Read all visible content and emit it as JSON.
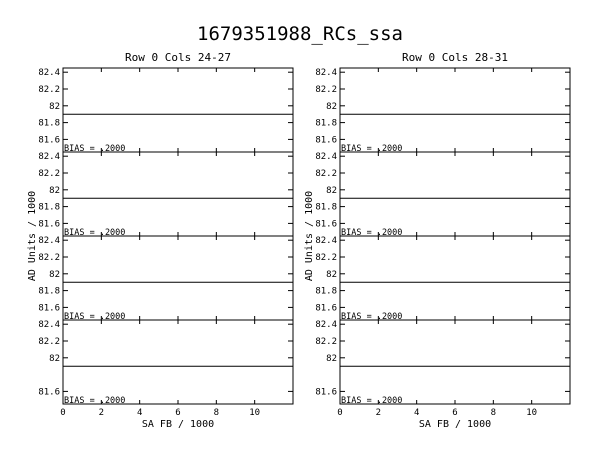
{
  "title": "1679351988_RCs_ssa",
  "chart_data": [
    {
      "type": "line",
      "title": "Row  0  Cols 24-27",
      "xlabel": "SA FB / 1000",
      "ylabel": "AD Units / 1000",
      "xlim": [
        0,
        12
      ],
      "xticks": [
        0,
        2,
        4,
        6,
        8,
        10
      ],
      "panels": [
        {
          "ylim": [
            81.45,
            82.45
          ],
          "yticks": [
            81.6,
            81.8,
            82,
            82.2,
            82.4
          ],
          "ytick_labels": [
            "81.6",
            "81.8",
            "82",
            "82.2",
            "82.4"
          ],
          "series": [
            {
              "y": 81.9
            }
          ],
          "annotation": "BIAS =  .2000"
        },
        {
          "ylim": [
            81.45,
            82.45
          ],
          "yticks": [
            81.6,
            81.8,
            82,
            82.2,
            82.4
          ],
          "ytick_labels": [
            "81.6",
            "81.8",
            "82",
            "82.2",
            "82.4"
          ],
          "series": [
            {
              "y": 81.9
            }
          ],
          "annotation": "BIAS =  .2000"
        },
        {
          "ylim": [
            81.45,
            82.45
          ],
          "yticks": [
            81.6,
            81.8,
            82,
            82.2,
            82.4
          ],
          "ytick_labels": [
            "81.6",
            "81.8",
            "82",
            "82.2",
            "82.4"
          ],
          "series": [
            {
              "y": 81.9
            }
          ],
          "annotation": "BIAS =  .2000"
        },
        {
          "ylim": [
            81.45,
            82.45
          ],
          "yticks": [
            81.6,
            82,
            82.2,
            82.4
          ],
          "ytick_labels": [
            "81.6",
            "82",
            "82.2",
            "82.4"
          ],
          "series": [
            {
              "y": 81.9
            }
          ],
          "annotation": "BIAS =  .2000"
        }
      ]
    },
    {
      "type": "line",
      "title": "Row  0  Cols 28-31",
      "xlabel": "SA FB / 1000",
      "ylabel": "AD Units / 1000",
      "xlim": [
        0,
        12
      ],
      "xticks": [
        0,
        2,
        4,
        6,
        8,
        10
      ],
      "panels": [
        {
          "ylim": [
            81.45,
            82.45
          ],
          "yticks": [
            81.6,
            81.8,
            82,
            82.2,
            82.4
          ],
          "ytick_labels": [
            "81.6",
            "81.8",
            "82",
            "82.2",
            "82.4"
          ],
          "series": [
            {
              "y": 81.9
            }
          ],
          "annotation": "BIAS =  .2000"
        },
        {
          "ylim": [
            81.45,
            82.45
          ],
          "yticks": [
            81.6,
            81.8,
            82,
            82.2,
            82.4
          ],
          "ytick_labels": [
            "81.6",
            "81.8",
            "82",
            "82.2",
            "82.4"
          ],
          "series": [
            {
              "y": 81.9
            }
          ],
          "annotation": "BIAS =  .2000"
        },
        {
          "ylim": [
            81.45,
            82.45
          ],
          "yticks": [
            81.6,
            81.8,
            82,
            82.2,
            82.4
          ],
          "ytick_labels": [
            "81.6",
            "81.8",
            "82",
            "82.2",
            "82.4"
          ],
          "series": [
            {
              "y": 81.9
            }
          ],
          "annotation": "BIAS =  .2000"
        },
        {
          "ylim": [
            81.45,
            82.45
          ],
          "yticks": [
            81.6,
            82,
            82.2,
            82.4
          ],
          "ytick_labels": [
            "81.6",
            "82",
            "82.2",
            "82.4"
          ],
          "series": [
            {
              "y": 81.9
            }
          ],
          "annotation": "BIAS =  .2000"
        }
      ]
    }
  ]
}
